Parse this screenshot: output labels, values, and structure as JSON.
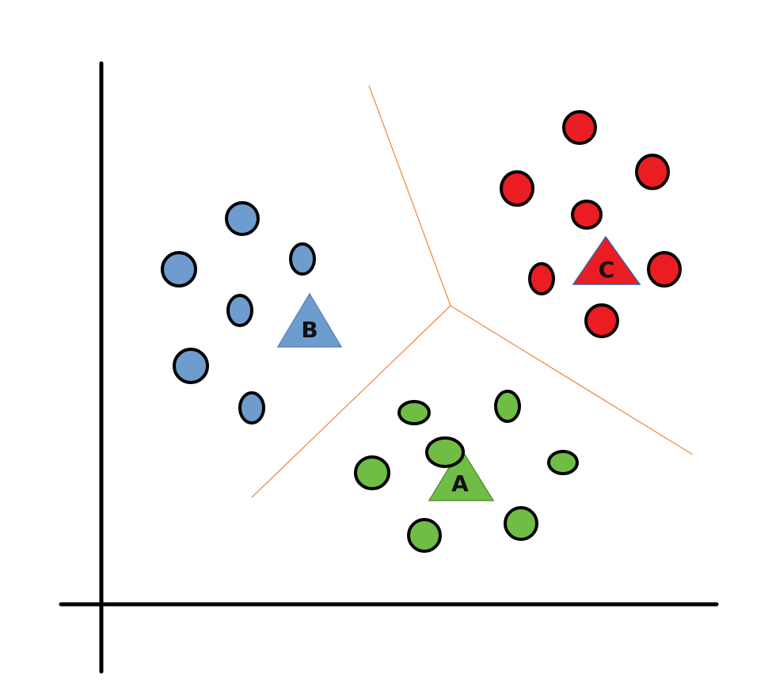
{
  "clusters": [
    {
      "id": "A",
      "label": "A",
      "color": "#6fbd45",
      "stroke": "#5a8f3a"
    },
    {
      "id": "B",
      "label": "B",
      "color": "#6e9ccf",
      "stroke": "#5b86bd"
    },
    {
      "id": "C",
      "label": "C",
      "color": "#ea1d22",
      "stroke": "#3b5fa8"
    }
  ],
  "colors": {
    "axis": "#000000",
    "boundary": "#f08c4a",
    "point_outline": "#000000"
  }
}
